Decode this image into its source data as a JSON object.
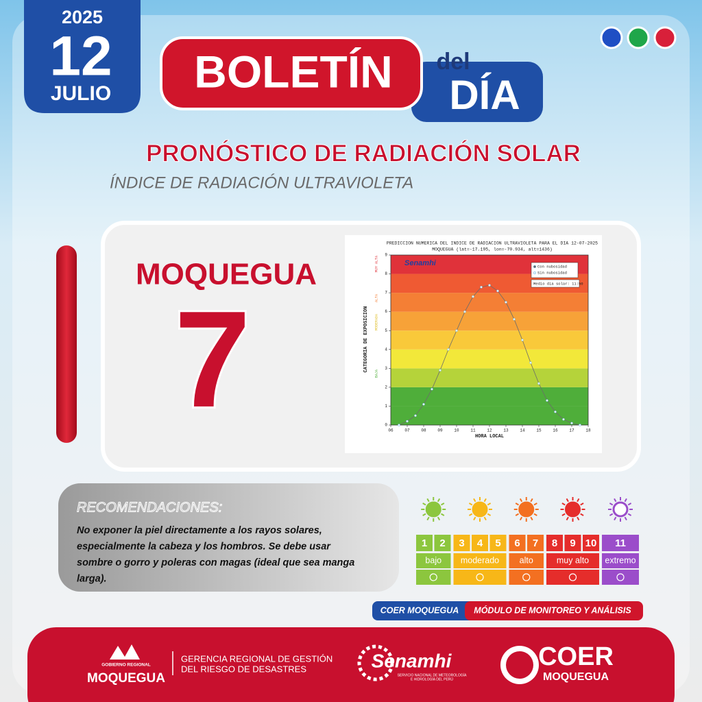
{
  "header": {
    "year": "2025",
    "day": "12",
    "month": "JULIO",
    "title_main": "BOLETÍN",
    "title_del": "del",
    "title_dia": "DÍA"
  },
  "section": {
    "title": "PRONÓSTICO DE RADIACIÓN SOLAR",
    "subtitle": "ÍNDICE DE RADIACIÓN ULTRAVIOLETA"
  },
  "location": "MOQUEGUA",
  "uv_index": 7,
  "chart_data": {
    "type": "line",
    "title": "PREDICCION NUMERICA DEL INDICE DE RADIACION ULTRAVIOLETA PARA EL DIA 12-07-2025",
    "subtitle": "MOQUEGUA (lat=-17.195, lon=-70.934, alt=1436)",
    "x_label": "HORA LOCAL",
    "y_label": "CATEGORIA DE EXPOSICION",
    "watermark": "Senamhi",
    "annotation": "Medio dia solar: 11:50",
    "category_labels": [
      "BAJA",
      "MODERADA",
      "ALTA",
      "MUY ALTA"
    ],
    "band_colors": [
      "#4fae3a",
      "#4fae3a",
      "#b5d33a",
      "#f2e83a",
      "#f9c93a",
      "#f7a238",
      "#f47f35",
      "#ef5a33",
      "#e0323a"
    ],
    "x": [
      6.5,
      7,
      7.5,
      8,
      8.5,
      9,
      9.5,
      10,
      10.5,
      11,
      11.5,
      12,
      12.5,
      13,
      13.5,
      14,
      14.5,
      15,
      15.5,
      16,
      16.5,
      17,
      17.5
    ],
    "series": [
      {
        "name": "Con nubosidad",
        "color": "#6b6b6b",
        "values": [
          0.0,
          0.2,
          0.5,
          1.1,
          1.9,
          2.9,
          4.0,
          5.0,
          6.0,
          6.8,
          7.3,
          7.4,
          7.1,
          6.5,
          5.6,
          4.5,
          3.3,
          2.2,
          1.3,
          0.7,
          0.3,
          0.1,
          0.0
        ]
      },
      {
        "name": "Sin nubosidad",
        "color": "#e8f6ff",
        "values": [
          0.0,
          0.2,
          0.5,
          1.1,
          1.9,
          2.9,
          4.0,
          5.0,
          6.0,
          6.8,
          7.3,
          7.4,
          7.1,
          6.5,
          5.6,
          4.5,
          3.3,
          2.2,
          1.3,
          0.7,
          0.3,
          0.1,
          0.0
        ]
      }
    ],
    "xlim": [
      6,
      18
    ],
    "ylim": [
      0,
      9
    ],
    "xticks": [
      {
        "value": 6,
        "label": "06"
      },
      {
        "value": 7,
        "label": "07"
      },
      {
        "value": 8,
        "label": "08"
      },
      {
        "value": 9,
        "label": "09"
      },
      10,
      11,
      12,
      13,
      14,
      15,
      16,
      17,
      18
    ],
    "yticks": [
      0,
      1,
      2,
      3,
      4,
      5,
      6,
      7,
      8,
      9
    ]
  },
  "recommendations": {
    "title": "RECOMENDACIONES:",
    "lines": [
      "No exponer la piel directamente a los rayos solares,",
      "especialmente la cabeza y los hombros. Se debe usar",
      "sombre o gorro y poleras con magas (ideal que sea manga",
      "larga)."
    ]
  },
  "uv_scale": [
    {
      "label": "bajo",
      "levels": [
        1,
        2
      ],
      "color": "#8cc63e"
    },
    {
      "label": "moderado",
      "levels": [
        3,
        4,
        5
      ],
      "color": "#f7b718"
    },
    {
      "label": "alto",
      "levels": [
        6,
        7
      ],
      "color": "#f37021"
    },
    {
      "label": "muy alto",
      "levels": [
        8,
        9,
        10
      ],
      "color": "#e52d2b"
    },
    {
      "label": "extremo",
      "levels": [
        11
      ],
      "color": "#9b4dca"
    }
  ],
  "tag": {
    "left": "COER MOQUEGUA",
    "right": "MÓDULO DE MONITOREO Y ANÁLISIS"
  },
  "footer": {
    "gore_small": "GOBIERNO REGIONAL",
    "gore": "MOQUEGUA",
    "gerencia": [
      "GERENCIA REGIONAL DE GESTIÓN",
      "DEL RIESGO DE DESASTRES"
    ],
    "senamhi": "Senamhi",
    "senamhi_sub": [
      "SERVICIO NACIONAL DE METEOROLOGÍA",
      "E HIDROLOGÍA DEL PERÚ"
    ],
    "coer": "COER",
    "coer_sub": "MOQUEGUA"
  }
}
